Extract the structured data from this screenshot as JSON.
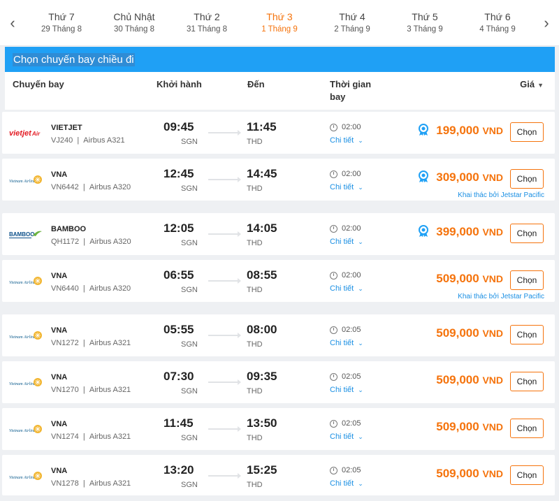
{
  "nav": {
    "prev_icon": "chevron-left-icon",
    "next_icon": "chevron-right-icon",
    "days": [
      {
        "name": "Thứ 7",
        "date": "29 Tháng 8",
        "active": false
      },
      {
        "name": "Chủ Nhật",
        "date": "30 Tháng 8",
        "active": false
      },
      {
        "name": "Thứ 2",
        "date": "31 Tháng 8",
        "active": false
      },
      {
        "name": "Thứ 3",
        "date": "1 Tháng 9",
        "active": true
      },
      {
        "name": "Thứ 4",
        "date": "2 Tháng 9",
        "active": false
      },
      {
        "name": "Thứ 5",
        "date": "3 Tháng 9",
        "active": false
      },
      {
        "name": "Thứ 6",
        "date": "4 Tháng 9",
        "active": false
      }
    ]
  },
  "section_title": "Chọn chuyến bay chiều đi",
  "columns": {
    "flight": "Chuyến bay",
    "departure": "Khởi hành",
    "arrival": "Đến",
    "duration_line1": "Thời gian",
    "duration_line2": "bay",
    "price": "Giá"
  },
  "detail_label": "Chi tiết",
  "select_label": "Chọn",
  "colors": {
    "accent": "#f5730c",
    "blue": "#1fa0f5",
    "link": "#1a8fe3"
  },
  "flights": [
    {
      "airline": "VIETJET",
      "logo": "vietjet-logo",
      "code": "VJ240",
      "aircraft": "Airbus A321",
      "dep": "09:45",
      "dep_ap": "SGN",
      "arr": "11:45",
      "arr_ap": "THD",
      "duration": "02:00",
      "price": "199,000",
      "currency": "VND",
      "badge": true,
      "operated_by": ""
    },
    {
      "airline": "VNA",
      "logo": "vietnam-airlines-logo",
      "code": "VN6442",
      "aircraft": "Airbus A320",
      "dep": "12:45",
      "dep_ap": "SGN",
      "arr": "14:45",
      "arr_ap": "THD",
      "duration": "02:00",
      "price": "309,000",
      "currency": "VND",
      "badge": true,
      "operated_by": "Khai thác bởi Jetstar Pacific"
    },
    {
      "airline": "BAMBOO",
      "logo": "bamboo-logo",
      "code": "QH1172",
      "aircraft": "Airbus A320",
      "dep": "12:05",
      "dep_ap": "SGN",
      "arr": "14:05",
      "arr_ap": "THD",
      "duration": "02:00",
      "price": "399,000",
      "currency": "VND",
      "badge": true,
      "operated_by": ""
    },
    {
      "airline": "VNA",
      "logo": "vietnam-airlines-logo",
      "code": "VN6440",
      "aircraft": "Airbus A320",
      "dep": "06:55",
      "dep_ap": "SGN",
      "arr": "08:55",
      "arr_ap": "THD",
      "duration": "02:00",
      "price": "509,000",
      "currency": "VND",
      "badge": false,
      "operated_by": "Khai thác bởi Jetstar Pacific"
    },
    {
      "airline": "VNA",
      "logo": "vietnam-airlines-logo",
      "code": "VN1272",
      "aircraft": "Airbus A321",
      "dep": "05:55",
      "dep_ap": "SGN",
      "arr": "08:00",
      "arr_ap": "THD",
      "duration": "02:05",
      "price": "509,000",
      "currency": "VND",
      "badge": false,
      "operated_by": ""
    },
    {
      "airline": "VNA",
      "logo": "vietnam-airlines-logo",
      "code": "VN1270",
      "aircraft": "Airbus A321",
      "dep": "07:30",
      "dep_ap": "SGN",
      "arr": "09:35",
      "arr_ap": "THD",
      "duration": "02:05",
      "price": "509,000",
      "currency": "VND",
      "badge": false,
      "operated_by": ""
    },
    {
      "airline": "VNA",
      "logo": "vietnam-airlines-logo",
      "code": "VN1274",
      "aircraft": "Airbus A321",
      "dep": "11:45",
      "dep_ap": "SGN",
      "arr": "13:50",
      "arr_ap": "THD",
      "duration": "02:05",
      "price": "509,000",
      "currency": "VND",
      "badge": false,
      "operated_by": ""
    },
    {
      "airline": "VNA",
      "logo": "vietnam-airlines-logo",
      "code": "VN1278",
      "aircraft": "Airbus A321",
      "dep": "13:20",
      "dep_ap": "SGN",
      "arr": "15:25",
      "arr_ap": "THD",
      "duration": "02:05",
      "price": "509,000",
      "currency": "VND",
      "badge": false,
      "operated_by": ""
    }
  ]
}
